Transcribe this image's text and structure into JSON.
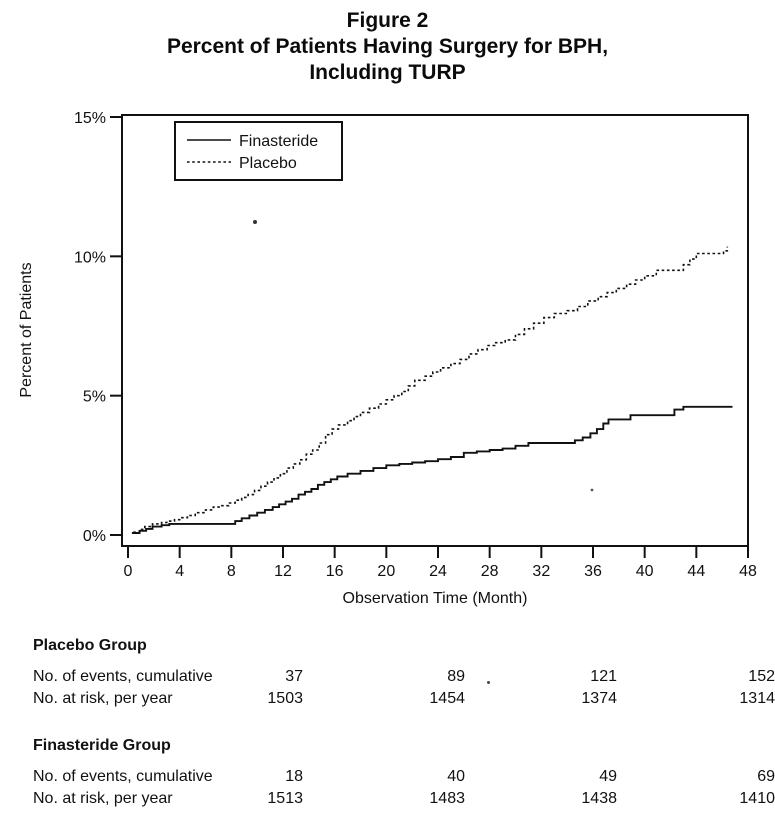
{
  "title": {
    "line1": "Figure 2",
    "line2": "Percent of Patients Having Surgery for BPH,",
    "line3": "Including TURP"
  },
  "chart_data": {
    "type": "line",
    "line_style": "step-after",
    "title": "Percent of Patients Having Surgery for BPH, Including TURP",
    "xlabel": "Observation Time (Month)",
    "ylabel": "Percent of Patients",
    "xlim": [
      0,
      48
    ],
    "ylim": [
      0,
      15
    ],
    "grid": false,
    "x_ticks": [
      0,
      4,
      8,
      12,
      16,
      20,
      24,
      28,
      32,
      36,
      40,
      44,
      48
    ],
    "y_ticks": [
      {
        "value": 0,
        "label": "0%"
      },
      {
        "value": 5,
        "label": "5%"
      },
      {
        "value": 10,
        "label": "10%"
      },
      {
        "value": 15,
        "label": "15%"
      }
    ],
    "legend": {
      "position": "top-left",
      "entries": [
        {
          "name": "Finasteride",
          "line": "solid"
        },
        {
          "name": "Placebo",
          "line": "dotted"
        }
      ]
    },
    "series": [
      {
        "name": "Finasteride",
        "line": "solid",
        "points": [
          [
            0.3,
            0.07
          ],
          [
            0.9,
            0.15
          ],
          [
            1.4,
            0.22
          ],
          [
            1.9,
            0.3
          ],
          [
            2.6,
            0.35
          ],
          [
            3.2,
            0.4
          ],
          [
            8.3,
            0.5
          ],
          [
            8.8,
            0.6
          ],
          [
            9.4,
            0.7
          ],
          [
            10.0,
            0.8
          ],
          [
            10.6,
            0.9
          ],
          [
            11.2,
            1.0
          ],
          [
            11.7,
            1.1
          ],
          [
            12.2,
            1.2
          ],
          [
            12.7,
            1.3
          ],
          [
            13.2,
            1.45
          ],
          [
            13.7,
            1.55
          ],
          [
            14.2,
            1.65
          ],
          [
            14.7,
            1.8
          ],
          [
            15.2,
            1.9
          ],
          [
            15.7,
            2.0
          ],
          [
            16.2,
            2.1
          ],
          [
            17.0,
            2.2
          ],
          [
            18.0,
            2.3
          ],
          [
            19.0,
            2.4
          ],
          [
            20.0,
            2.5
          ],
          [
            21.0,
            2.55
          ],
          [
            22.0,
            2.6
          ],
          [
            23.0,
            2.65
          ],
          [
            24.0,
            2.72
          ],
          [
            25.0,
            2.8
          ],
          [
            26.0,
            2.95
          ],
          [
            27.0,
            3.0
          ],
          [
            28.0,
            3.05
          ],
          [
            29.0,
            3.1
          ],
          [
            30.0,
            3.2
          ],
          [
            31.0,
            3.3
          ],
          [
            34.6,
            3.4
          ],
          [
            35.2,
            3.5
          ],
          [
            35.8,
            3.65
          ],
          [
            36.3,
            3.8
          ],
          [
            36.8,
            4.0
          ],
          [
            37.2,
            4.15
          ],
          [
            38.9,
            4.3
          ],
          [
            42.3,
            4.5
          ],
          [
            43.0,
            4.6
          ],
          [
            46.8,
            4.6
          ]
        ]
      },
      {
        "name": "Placebo",
        "line": "dotted",
        "points": [
          [
            0.4,
            0.1
          ],
          [
            0.9,
            0.2
          ],
          [
            1.3,
            0.3
          ],
          [
            1.9,
            0.4
          ],
          [
            2.6,
            0.45
          ],
          [
            3.0,
            0.5
          ],
          [
            3.6,
            0.55
          ],
          [
            4.0,
            0.62
          ],
          [
            4.6,
            0.7
          ],
          [
            5.2,
            0.8
          ],
          [
            6.0,
            0.9
          ],
          [
            6.6,
            1.0
          ],
          [
            7.2,
            1.05
          ],
          [
            7.8,
            1.15
          ],
          [
            8.3,
            1.25
          ],
          [
            8.8,
            1.35
          ],
          [
            9.3,
            1.45
          ],
          [
            9.8,
            1.6
          ],
          [
            10.3,
            1.75
          ],
          [
            10.8,
            1.9
          ],
          [
            11.3,
            2.05
          ],
          [
            11.8,
            2.2
          ],
          [
            12.3,
            2.4
          ],
          [
            12.8,
            2.55
          ],
          [
            13.3,
            2.7
          ],
          [
            13.8,
            2.9
          ],
          [
            14.3,
            3.05
          ],
          [
            14.8,
            3.3
          ],
          [
            15.3,
            3.6
          ],
          [
            15.8,
            3.8
          ],
          [
            16.3,
            3.95
          ],
          [
            17.0,
            4.1
          ],
          [
            17.5,
            4.25
          ],
          [
            18.0,
            4.4
          ],
          [
            18.7,
            4.55
          ],
          [
            19.4,
            4.7
          ],
          [
            20.0,
            4.85
          ],
          [
            20.6,
            5.0
          ],
          [
            21.2,
            5.15
          ],
          [
            21.7,
            5.35
          ],
          [
            22.2,
            5.55
          ],
          [
            23.0,
            5.7
          ],
          [
            23.6,
            5.85
          ],
          [
            24.2,
            6.0
          ],
          [
            25.0,
            6.15
          ],
          [
            25.7,
            6.3
          ],
          [
            26.4,
            6.5
          ],
          [
            27.1,
            6.65
          ],
          [
            27.8,
            6.8
          ],
          [
            28.4,
            6.9
          ],
          [
            29.2,
            7.0
          ],
          [
            30.0,
            7.2
          ],
          [
            30.7,
            7.4
          ],
          [
            31.4,
            7.6
          ],
          [
            32.2,
            7.8
          ],
          [
            33.0,
            7.95
          ],
          [
            34.0,
            8.05
          ],
          [
            34.8,
            8.2
          ],
          [
            35.6,
            8.4
          ],
          [
            36.4,
            8.55
          ],
          [
            37.1,
            8.7
          ],
          [
            37.8,
            8.85
          ],
          [
            38.6,
            9.0
          ],
          [
            39.3,
            9.15
          ],
          [
            40.0,
            9.3
          ],
          [
            40.9,
            9.5
          ],
          [
            43.0,
            9.7
          ],
          [
            43.5,
            9.9
          ],
          [
            44.0,
            10.1
          ],
          [
            46.1,
            10.2
          ],
          [
            46.4,
            10.35
          ]
        ]
      }
    ]
  },
  "tables": [
    {
      "header": "Placebo Group",
      "rows": [
        {
          "label": "No. of events, cumulative",
          "values": [
            "37",
            "89",
            "121",
            "152"
          ]
        },
        {
          "label": "No. at risk, per year",
          "values": [
            "1503",
            "1454",
            "1374",
            "1314"
          ]
        }
      ]
    },
    {
      "header": "Finasteride Group",
      "rows": [
        {
          "label": "No. of events, cumulative",
          "values": [
            "18",
            "40",
            "49",
            "69"
          ]
        },
        {
          "label": "No. at risk, per year",
          "values": [
            "1513",
            "1483",
            "1438",
            "1410"
          ]
        }
      ]
    }
  ],
  "colors": {
    "ink": "#111111",
    "background": "#ffffff"
  }
}
